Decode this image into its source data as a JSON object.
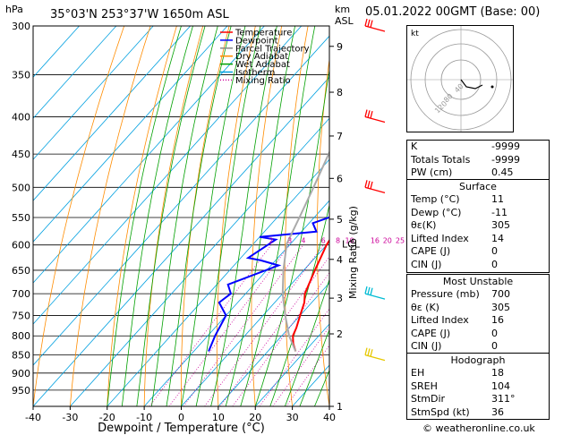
{
  "header": {
    "hpa_label": "hPa",
    "station": "35°03'N  253°37'W  1650m  ASL",
    "km_label": "km",
    "asl_label": "ASL",
    "date": "05.01.2022  00GMT  (Base: 00)"
  },
  "legend": [
    {
      "label": "Temperature",
      "color": "#ff0000",
      "dash": false
    },
    {
      "label": "Dewpoint",
      "color": "#0000ff",
      "dash": false
    },
    {
      "label": "Parcel Trajectory",
      "color": "#888888",
      "dash": false
    },
    {
      "label": "Dry Adiabat",
      "color": "#ff8c00",
      "dash": false
    },
    {
      "label": "Wet Adiabat",
      "color": "#00a000",
      "dash": false
    },
    {
      "label": "Isotherm",
      "color": "#00a0e0",
      "dash": false
    },
    {
      "label": "Mixing Ratio",
      "color": "#cc0099",
      "dash": true
    }
  ],
  "chart_data": {
    "type": "line",
    "xlabel": "Dewpoint / Temperature (°C)",
    "ylabel_right": "Mixing Ratio (g/kg)",
    "x_ticks": [
      -40,
      -30,
      -20,
      -10,
      0,
      10,
      20,
      30,
      40
    ],
    "pressure_ticks": [
      300,
      350,
      400,
      450,
      500,
      550,
      600,
      650,
      700,
      750,
      800,
      850,
      900,
      950
    ],
    "xlim": [
      -40,
      40
    ],
    "plim": [
      300,
      1000
    ],
    "km_ticks": [
      {
        "km": "1",
        "p": 1000
      },
      {
        "km": "2",
        "p": 795
      },
      {
        "km": "3",
        "p": 710
      },
      {
        "km": "4",
        "p": 628
      },
      {
        "km": "5",
        "p": 553
      },
      {
        "km": "6",
        "p": 486
      },
      {
        "km": "7",
        "p": 425
      },
      {
        "km": "8",
        "p": 370
      },
      {
        "km": "9",
        "p": 320
      }
    ],
    "lcl_label": "LCL",
    "lcl_p": 598,
    "mixing_ratio_labels": [
      "2",
      "3",
      "4",
      "6",
      "8",
      "10",
      "16",
      "20",
      "25"
    ],
    "mixing_ratio_values": [
      2,
      3,
      4,
      6,
      8,
      10,
      16,
      20,
      25
    ],
    "series": [
      {
        "name": "Temperature",
        "color": "#ff0000",
        "points": [
          [
            840,
            17.5
          ],
          [
            820,
            15
          ],
          [
            800,
            13
          ],
          [
            780,
            12
          ],
          [
            750,
            10
          ],
          [
            720,
            8
          ],
          [
            700,
            6
          ],
          [
            650,
            3
          ],
          [
            600,
            0
          ],
          [
            550,
            -2
          ],
          [
            530,
            -2
          ],
          [
            510,
            -1
          ],
          [
            500,
            -2
          ],
          [
            450,
            -6
          ],
          [
            400,
            -12
          ],
          [
            350,
            -19
          ],
          [
            320,
            -24
          ],
          [
            300,
            -28
          ]
        ]
      },
      {
        "name": "Dewpoint",
        "color": "#0000ff",
        "points": [
          [
            840,
            -6
          ],
          [
            800,
            -8
          ],
          [
            750,
            -10
          ],
          [
            720,
            -15
          ],
          [
            700,
            -14
          ],
          [
            680,
            -17
          ],
          [
            640,
            -8
          ],
          [
            630,
            -14
          ],
          [
            625,
            -18
          ],
          [
            590,
            -15
          ],
          [
            585,
            -20
          ],
          [
            575,
            -6
          ],
          [
            560,
            -9
          ],
          [
            540,
            -3
          ],
          [
            520,
            -3
          ],
          [
            500,
            -4
          ],
          [
            450,
            -8
          ],
          [
            400,
            -11
          ],
          [
            380,
            -15
          ],
          [
            350,
            -17
          ],
          [
            340,
            -17
          ],
          [
            320,
            -17
          ],
          [
            310,
            -20
          ],
          [
            300,
            -24
          ]
        ]
      },
      {
        "name": "Parcel Trajectory",
        "color": "#aaaaaa",
        "points": [
          [
            840,
            17.5
          ],
          [
            800,
            12
          ],
          [
            750,
            6
          ],
          [
            700,
            0
          ],
          [
            650,
            -5.5
          ],
          [
            598,
            -11
          ],
          [
            550,
            -14
          ],
          [
            500,
            -17.5
          ],
          [
            450,
            -21.5
          ],
          [
            400,
            -26
          ],
          [
            350,
            -31
          ],
          [
            300,
            -36.5
          ]
        ]
      }
    ],
    "wind_barbs": [
      {
        "p": 300,
        "color": "#ff0000"
      },
      {
        "p": 400,
        "color": "#ff0000"
      },
      {
        "p": 500,
        "color": "#ff0000"
      },
      {
        "p": 700,
        "color": "#00bcd4"
      },
      {
        "p": 850,
        "color": "#e6c800"
      }
    ]
  },
  "hodograph": {
    "label": "kt",
    "ring_labels": [
      "120",
      "80",
      "40"
    ]
  },
  "indices": [
    {
      "label": "K",
      "value": "-9999"
    },
    {
      "label": "Totals Totals",
      "value": "-9999"
    },
    {
      "label": "PW (cm)",
      "value": "0.45"
    }
  ],
  "surface": {
    "title": "Surface",
    "rows": [
      {
        "label": "Temp (°C)",
        "value": "11"
      },
      {
        "label": "Dewp (°C)",
        "value": "-11"
      },
      {
        "label": "θε(K)",
        "value": "305"
      },
      {
        "label": "Lifted Index",
        "value": "14"
      },
      {
        "label": "CAPE (J)",
        "value": "0"
      },
      {
        "label": "CIN (J)",
        "value": "0"
      }
    ]
  },
  "most_unstable": {
    "title": "Most Unstable",
    "rows": [
      {
        "label": "Pressure (mb)",
        "value": "700"
      },
      {
        "label": "θε (K)",
        "value": "305"
      },
      {
        "label": "Lifted Index",
        "value": "16"
      },
      {
        "label": "CAPE (J)",
        "value": "0"
      },
      {
        "label": "CIN (J)",
        "value": "0"
      }
    ]
  },
  "hodo_table": {
    "title": "Hodograph",
    "rows": [
      {
        "label": "EH",
        "value": "18"
      },
      {
        "label": "SREH",
        "value": "104"
      },
      {
        "label": "StmDir",
        "value": "311°"
      },
      {
        "label": "StmSpd (kt)",
        "value": "36"
      }
    ]
  },
  "footer": "© weatheronline.co.uk"
}
